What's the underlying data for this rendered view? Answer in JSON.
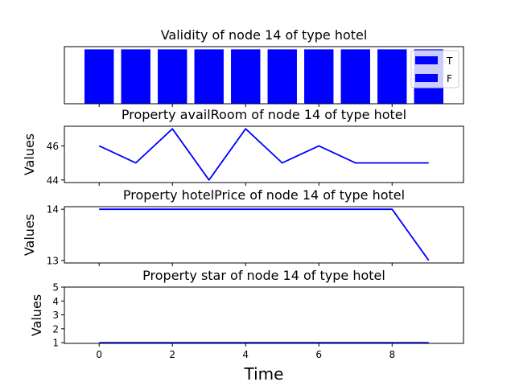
{
  "figure": {
    "xlabel": "Time",
    "x_ticks": [
      0,
      2,
      4,
      6,
      8
    ],
    "xlim": [
      -0.95,
      9.95
    ]
  },
  "chart_data": [
    {
      "type": "bar",
      "title": "Validity of node 14 of type hotel",
      "x": [
        0,
        1,
        2,
        3,
        4,
        5,
        6,
        7,
        8,
        9
      ],
      "values": [
        1,
        1,
        1,
        1,
        1,
        1,
        1,
        1,
        1,
        1
      ],
      "ylim": [
        0,
        1.05
      ],
      "color": "#0000ff",
      "grid": false,
      "legend": {
        "placement": "right",
        "entries": [
          {
            "label": "T",
            "color": "#0000ff"
          },
          {
            "label": "F",
            "color": "#0000ff"
          }
        ]
      }
    },
    {
      "type": "line",
      "title": "Property availRoom of node 14 of type hotel",
      "ylabel": "Values",
      "x": [
        0,
        1,
        2,
        3,
        4,
        5,
        6,
        7,
        8,
        9
      ],
      "values": [
        46,
        45,
        47,
        44,
        47,
        45,
        46,
        45,
        45,
        45
      ],
      "ylim": [
        43.85,
        47.15
      ],
      "y_ticks": [
        44,
        46
      ],
      "color": "#0000ff",
      "grid": false
    },
    {
      "type": "line",
      "title": "Property hotelPrice of node 14 of type hotel",
      "ylabel": "Values",
      "x": [
        0,
        1,
        2,
        3,
        4,
        5,
        6,
        7,
        8,
        9
      ],
      "values": [
        14,
        14,
        14,
        14,
        14,
        14,
        14,
        14,
        14,
        13
      ],
      "ylim": [
        12.95,
        14.05
      ],
      "y_ticks": [
        13,
        14
      ],
      "color": "#0000ff",
      "grid": false
    },
    {
      "type": "line",
      "title": "Property star of node 14 of type hotel",
      "ylabel": "Values",
      "x": [
        0,
        1,
        2,
        3,
        4,
        5,
        6,
        7,
        8,
        9
      ],
      "values": [
        1,
        1,
        1,
        1,
        1,
        1,
        1,
        1,
        1,
        1
      ],
      "ylim": [
        0.95,
        5
      ],
      "y_ticks": [
        1,
        2,
        3,
        4,
        5
      ],
      "color": "#0000ff",
      "grid": false
    }
  ]
}
